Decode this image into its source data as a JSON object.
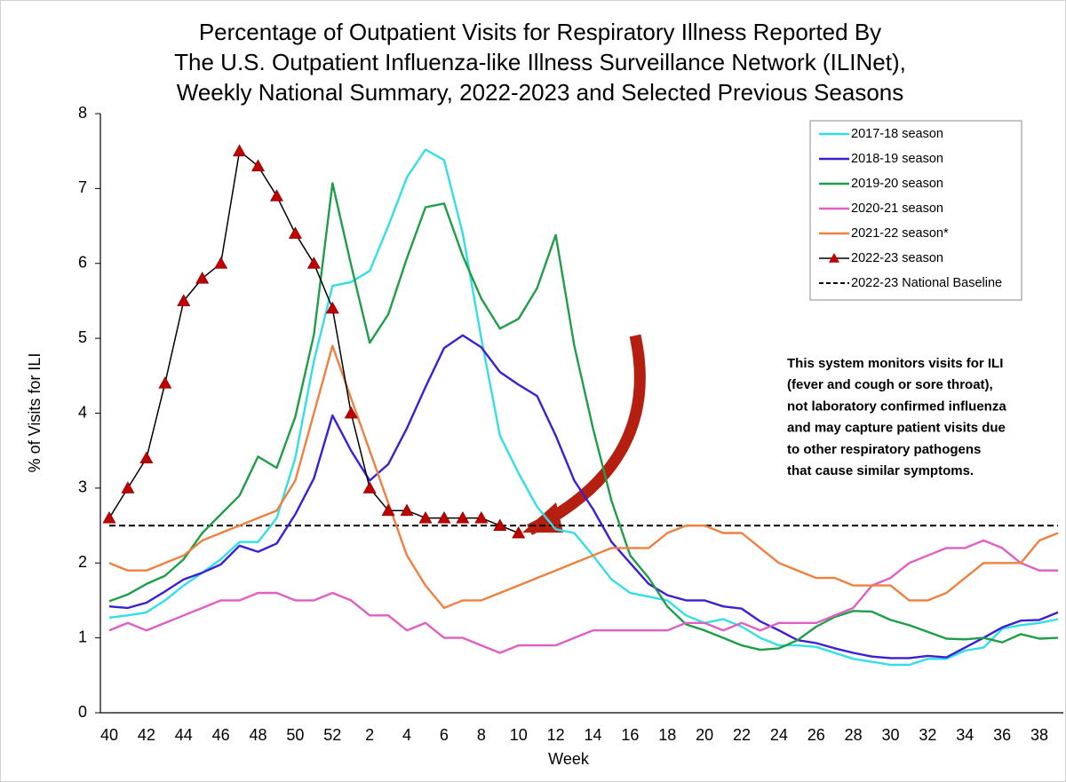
{
  "chart_data": {
    "type": "line",
    "title": [
      "Percentage of Outpatient Visits for Respiratory Illness Reported By",
      "The U.S. Outpatient Influenza-like Illness Surveillance Network (ILINet),",
      "Weekly National Summary, 2022-2023 and Selected Previous Seasons"
    ],
    "x_label": "Week",
    "y_label": "% of Visits for ILI",
    "categories": [
      "40",
      null,
      "42",
      null,
      "44",
      null,
      "46",
      null,
      "48",
      null,
      "50",
      null,
      "52",
      null,
      "2",
      null,
      "4",
      null,
      "6",
      null,
      "8",
      null,
      "10",
      null,
      "12",
      null,
      "14",
      null,
      "16",
      null,
      "18",
      null,
      "20",
      null,
      "22",
      null,
      "24",
      null,
      "26",
      null,
      "28",
      null,
      "30",
      null,
      "32",
      null,
      "34",
      null,
      "36",
      null,
      "38",
      null
    ],
    "ylim": [
      0,
      8
    ],
    "yticks": [
      0,
      1,
      2,
      3,
      4,
      5,
      6,
      7,
      8
    ],
    "legend": "upper right",
    "series": [
      {
        "name": "2017-18 season",
        "color": "#33dfe6",
        "values": [
          1.27,
          1.3,
          1.34,
          1.5,
          1.7,
          1.87,
          2.05,
          2.28,
          2.28,
          2.6,
          3.4,
          4.7,
          5.7,
          5.75,
          5.9,
          6.5,
          7.15,
          7.52,
          7.38,
          6.4,
          5.0,
          3.7,
          3.2,
          2.75,
          2.45,
          2.4,
          2.1,
          1.78,
          1.6,
          1.55,
          1.5,
          1.3,
          1.2,
          1.25,
          1.15,
          1.0,
          0.9,
          0.9,
          0.88,
          0.8,
          0.72,
          0.68,
          0.64,
          0.64,
          0.72,
          0.72,
          0.83,
          0.87,
          1.12,
          1.17,
          1.2,
          1.25
        ]
      },
      {
        "name": "2018-19 season",
        "color": "#3a1fd6",
        "values": [
          1.42,
          1.4,
          1.47,
          1.62,
          1.78,
          1.87,
          1.98,
          2.23,
          2.15,
          2.26,
          2.65,
          3.13,
          3.97,
          3.5,
          3.1,
          3.32,
          3.8,
          4.35,
          4.87,
          5.04,
          4.88,
          4.55,
          4.38,
          4.23,
          3.7,
          3.1,
          2.72,
          2.28,
          2.0,
          1.72,
          1.57,
          1.5,
          1.5,
          1.42,
          1.39,
          1.22,
          1.1,
          0.97,
          0.93,
          0.86,
          0.8,
          0.75,
          0.73,
          0.73,
          0.76,
          0.74,
          0.87,
          1.0,
          1.14,
          1.23,
          1.24,
          1.34
        ]
      },
      {
        "name": "2019-20 season",
        "color": "#1f9e48",
        "values": [
          1.49,
          1.58,
          1.72,
          1.83,
          2.05,
          2.4,
          2.65,
          2.9,
          3.42,
          3.27,
          3.95,
          5.05,
          7.07,
          5.98,
          4.94,
          5.32,
          6.07,
          6.75,
          6.8,
          6.1,
          5.53,
          5.13,
          5.26,
          5.67,
          6.38,
          4.9,
          3.8,
          2.83,
          2.1,
          1.8,
          1.42,
          1.18,
          1.1,
          1.0,
          0.9,
          0.84,
          0.86,
          0.97,
          1.15,
          1.28,
          1.36,
          1.35,
          1.24,
          1.17,
          1.08,
          0.99,
          0.98,
          1.0,
          0.94,
          1.05,
          0.99,
          1.0
        ]
      },
      {
        "name": "2020-21 season",
        "color": "#e05fc2",
        "values": [
          1.1,
          1.2,
          1.1,
          1.2,
          1.3,
          1.4,
          1.5,
          1.5,
          1.6,
          1.6,
          1.5,
          1.5,
          1.6,
          1.5,
          1.3,
          1.3,
          1.1,
          1.2,
          1.0,
          1.0,
          0.9,
          0.8,
          0.9,
          0.9,
          0.9,
          1.0,
          1.1,
          1.1,
          1.1,
          1.1,
          1.1,
          1.2,
          1.2,
          1.1,
          1.2,
          1.1,
          1.2,
          1.2,
          1.2,
          1.3,
          1.4,
          1.7,
          1.8,
          2.0,
          2.1,
          2.2,
          2.2,
          2.3,
          2.2,
          2.0,
          1.9,
          1.9
        ]
      },
      {
        "name": "2021-22 season*",
        "color": "#ee8040",
        "values": [
          2.0,
          1.9,
          1.9,
          2.0,
          2.1,
          2.3,
          2.4,
          2.5,
          2.6,
          2.7,
          3.1,
          4.0,
          4.9,
          4.2,
          3.5,
          2.8,
          2.1,
          1.7,
          1.4,
          1.5,
          1.5,
          1.6,
          1.7,
          1.8,
          1.9,
          2.0,
          2.1,
          2.2,
          2.2,
          2.2,
          2.4,
          2.5,
          2.5,
          2.4,
          2.4,
          2.2,
          2.0,
          1.9,
          1.8,
          1.8,
          1.7,
          1.7,
          1.7,
          1.5,
          1.5,
          1.6,
          1.8,
          2.0,
          2.0,
          2.0,
          2.3,
          2.4
        ]
      },
      {
        "name": "2022-23 season",
        "color": "#000000",
        "marker": "triangle",
        "marker_color": "#c00000",
        "values": [
          2.6,
          3.0,
          3.4,
          4.4,
          5.5,
          5.8,
          6.0,
          7.5,
          7.3,
          6.9,
          6.4,
          6.0,
          5.4,
          4.0,
          3.0,
          2.7,
          2.7,
          2.6,
          2.6,
          2.6,
          2.6,
          2.5,
          2.4,
          null,
          null,
          null,
          null,
          null,
          null,
          null,
          null,
          null,
          null,
          null,
          null,
          null,
          null,
          null,
          null,
          null,
          null,
          null,
          null,
          null,
          null,
          null,
          null,
          null,
          null,
          null,
          null,
          null
        ]
      }
    ],
    "reference_lines": [
      {
        "name": "2022-23 National Baseline",
        "value": 2.5,
        "color": "#000000",
        "dashed": true
      }
    ],
    "annotation": [
      "This system monitors visits for ILI",
      "(fever and cough or sore throat),",
      "not laboratory confirmed influenza",
      "and may capture patient visits due",
      "to other respiratory pathogens",
      "that cause similar symptoms."
    ]
  }
}
